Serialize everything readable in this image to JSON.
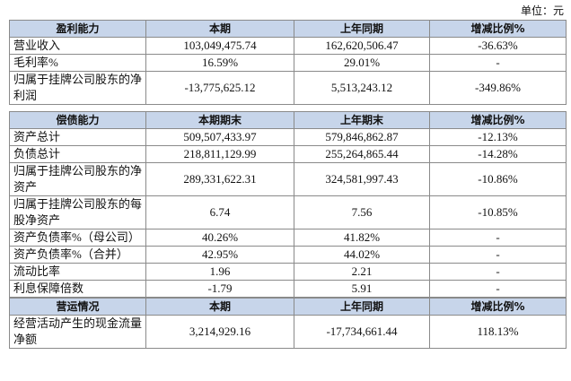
{
  "unit": "单位：元",
  "sections": [
    {
      "header": [
        "盈利能力",
        "本期",
        "上年同期",
        "增减比例%"
      ],
      "rows": [
        [
          "营业收入",
          "103,049,475.74",
          "162,620,506.47",
          "-36.63%"
        ],
        [
          "毛利率%",
          "16.59%",
          "29.01%",
          "-"
        ],
        [
          "归属于挂牌公司股东的净利润",
          "-13,775,625.12",
          "5,513,243.12",
          "-349.86%"
        ]
      ]
    },
    {
      "header": [
        "偿债能力",
        "本期期末",
        "上年期末",
        "增减比例%"
      ],
      "rows": [
        [
          "资产总计",
          "509,507,433.97",
          "579,846,862.87",
          "-12.13%"
        ],
        [
          "负债总计",
          "218,811,129.99",
          "255,264,865.44",
          "-14.28%"
        ],
        [
          "归属于挂牌公司股东的净资产",
          "289,331,622.31",
          "324,581,997.43",
          "-10.86%"
        ],
        [
          "归属于挂牌公司股东的每股净资产",
          "6.74",
          "7.56",
          "-10.85%"
        ],
        [
          "资产负债率%（母公司）",
          "40.26%",
          "41.82%",
          "-"
        ],
        [
          "资产负债率%（合并）",
          "42.95%",
          "44.02%",
          "-"
        ],
        [
          "流动比率",
          "1.96",
          "2.21",
          "-"
        ],
        [
          "利息保障倍数",
          "-1.79",
          "5.91",
          "-"
        ]
      ]
    },
    {
      "header": [
        "营运情况",
        "本期",
        "上年同期",
        "增减比例%"
      ],
      "rows": [
        [
          "经营活动产生的现金流量净额",
          "3,214,929.16",
          "-17,734,661.44",
          "118.13%"
        ]
      ]
    }
  ]
}
